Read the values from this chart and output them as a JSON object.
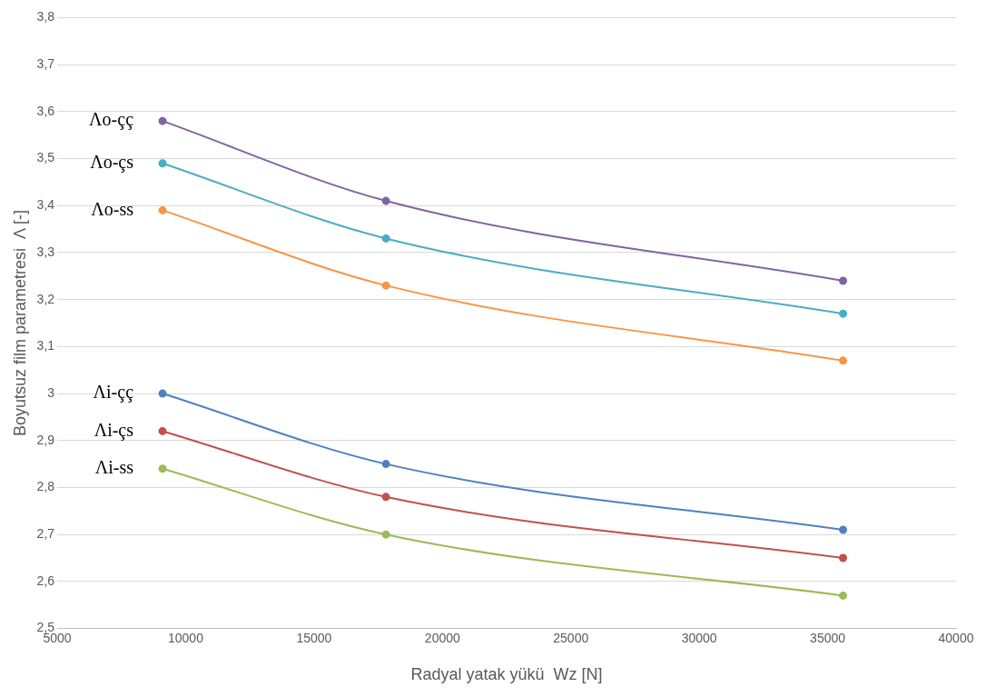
{
  "chart_data": {
    "type": "line",
    "xlabel": "Radyal yatak yükü  Wz [N]",
    "ylabel": "Boyutsuz film parametresi  Λ [-]",
    "x": [
      9100,
      17800,
      35600
    ],
    "series": [
      {
        "name": "Λo-çç",
        "color": "#8064a2",
        "values": [
          3.58,
          3.41,
          3.24
        ]
      },
      {
        "name": "Λo-çs",
        "color": "#4bacc6",
        "values": [
          3.49,
          3.33,
          3.17
        ]
      },
      {
        "name": "Λo-ss",
        "color": "#f79646",
        "values": [
          3.39,
          3.23,
          3.07
        ]
      },
      {
        "name": "Λi-çç",
        "color": "#4f81bd",
        "values": [
          3.0,
          2.85,
          2.71
        ]
      },
      {
        "name": "Λi-çs",
        "color": "#c0504d",
        "values": [
          2.92,
          2.78,
          2.65
        ]
      },
      {
        "name": "Λi-ss",
        "color": "#9bbb59",
        "values": [
          2.84,
          2.7,
          2.57
        ]
      }
    ],
    "xlim": [
      5000,
      40000
    ],
    "xticks": [
      5000,
      10000,
      15000,
      20000,
      25000,
      30000,
      35000,
      40000
    ],
    "ylim": [
      2.5,
      3.8
    ],
    "yticks": [
      {
        "value": 2.5,
        "label": "2,5"
      },
      {
        "value": 2.6,
        "label": "2,6"
      },
      {
        "value": 2.7,
        "label": "2,7"
      },
      {
        "value": 2.8,
        "label": "2,8"
      },
      {
        "value": 2.9,
        "label": "2,9"
      },
      3,
      {
        "value": 3.1,
        "label": "3,1"
      },
      {
        "value": 3.2,
        "label": "3,2"
      },
      {
        "value": 3.3,
        "label": "3,3"
      },
      {
        "value": 3.4,
        "label": "3,4"
      },
      {
        "value": 3.5,
        "label": "3,5"
      },
      {
        "value": 3.6,
        "label": "3,6"
      },
      {
        "value": 3.7,
        "label": "3,7"
      },
      {
        "value": 3.8,
        "label": "3,8"
      }
    ],
    "grid": "y",
    "legend": false,
    "marker": "circle",
    "line_style": "solid"
  }
}
